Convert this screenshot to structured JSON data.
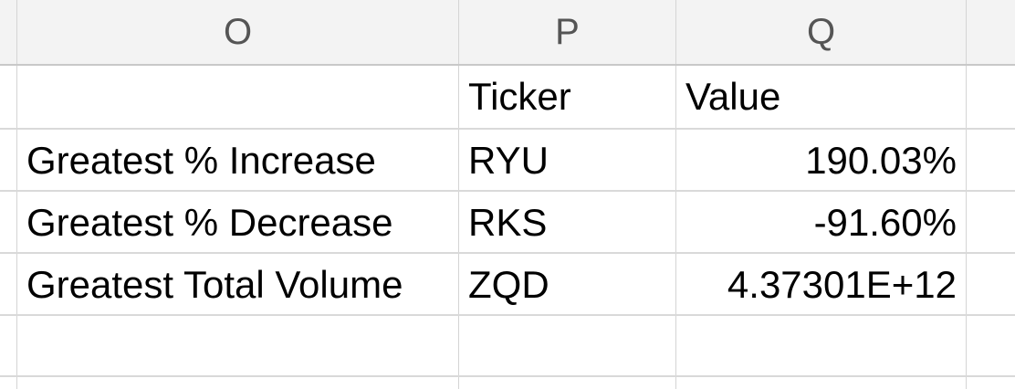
{
  "columns": {
    "O": "O",
    "P": "P",
    "Q": "Q"
  },
  "rows": [
    {
      "label": "",
      "ticker": "Ticker",
      "value": "Value"
    },
    {
      "label": "Greatest % Increase",
      "ticker": "RYU",
      "value": "190.03%"
    },
    {
      "label": "Greatest %  Decrease",
      "ticker": "RKS",
      "value": "-91.60%"
    },
    {
      "label": "Greatest Total Volume",
      "ticker": "ZQD",
      "value": "4.37301E+12"
    },
    {
      "label": "",
      "ticker": "",
      "value": ""
    }
  ]
}
